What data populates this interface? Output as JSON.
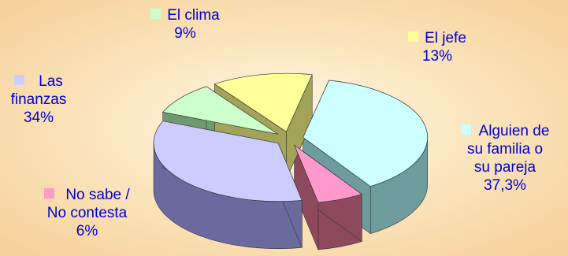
{
  "chart_data": {
    "type": "pie",
    "title": "",
    "slices": [
      {
        "label": "Alguien de su familia o su pareja",
        "value": 37.3,
        "value_text": "37,3%",
        "color": "#ccffff",
        "side": "#6e9c9c"
      },
      {
        "label": "No sabe / No contesta",
        "value": 6,
        "value_text": "6%",
        "color": "#ff99cc",
        "side": "#8e4a5c"
      },
      {
        "label": "Las finanzas",
        "value": 34,
        "value_text": "34%",
        "color": "#ccccff",
        "side": "#6a6a9e"
      },
      {
        "label": "El clima",
        "value": 9,
        "value_text": "9%",
        "color": "#ccffcc",
        "side": "#6f9a6f"
      },
      {
        "label": "El jefe",
        "value": 13,
        "value_text": "13%",
        "color": "#ffff99",
        "side": "#a3a35a"
      }
    ],
    "labels": {
      "familia": [
        "Alguien de",
        "su familia o",
        "su pareja",
        "37,3%"
      ],
      "nosabe": [
        "No sabe /",
        "No contesta",
        "6%"
      ],
      "finanzas": [
        "Las",
        "finanzas",
        "34%"
      ],
      "clima": [
        "El clima",
        "9%"
      ],
      "jefe": [
        "El jefe",
        "13%"
      ]
    },
    "label_color": "#0000cc",
    "background": "#fbe6c0",
    "legend": "none",
    "style": "3d-exploded"
  }
}
